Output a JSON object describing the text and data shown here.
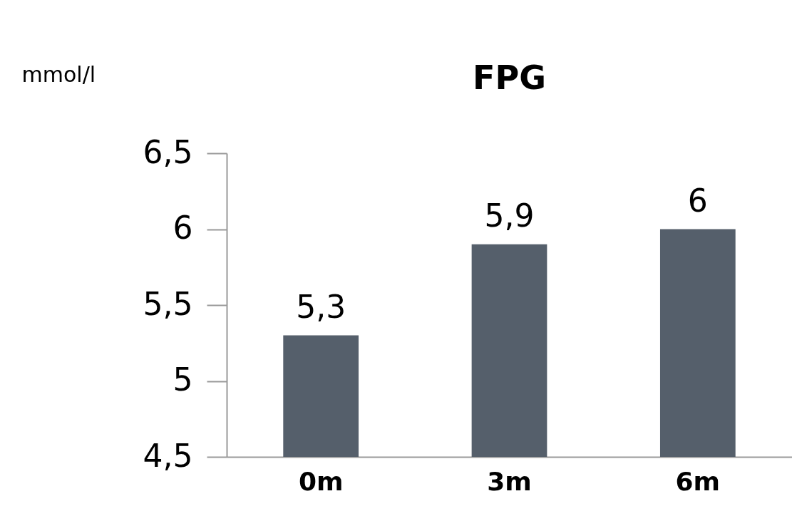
{
  "chart_data": {
    "type": "bar",
    "title": "FPG",
    "ylabel": "mmol/l",
    "categories": [
      "0m",
      "3m",
      "6m"
    ],
    "values": [
      5.3,
      5.9,
      6
    ],
    "value_labels": [
      "5,3",
      "5,9",
      "6"
    ],
    "color": "#555f6b",
    "ylim": [
      4.5,
      6.5
    ],
    "yticks": [
      {
        "value": 4.5,
        "label": "4,5"
      },
      5,
      {
        "value": 5.5,
        "label": "5,5"
      },
      6,
      {
        "value": 6.5,
        "label": "6,5"
      }
    ],
    "grid": false
  }
}
